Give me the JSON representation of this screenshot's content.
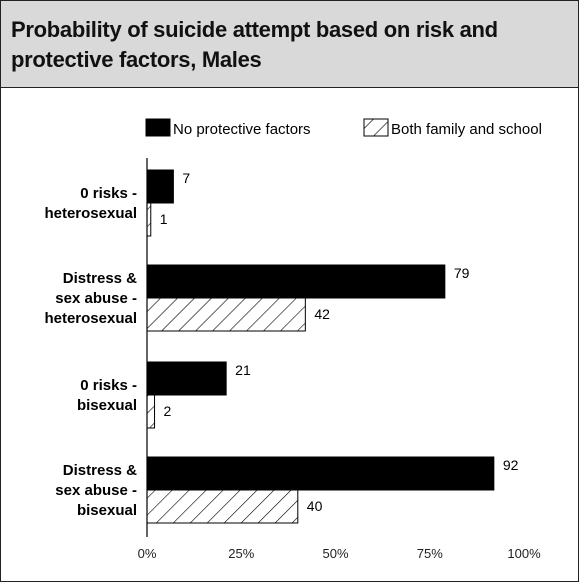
{
  "chart_data": {
    "type": "bar",
    "orientation": "horizontal",
    "title": "Probability of suicide attempt based on risk and protective factors, Males",
    "categories": [
      [
        "0 risks -",
        "heterosexual"
      ],
      [
        "Distress &",
        "sex abuse -",
        "heterosexual"
      ],
      [
        "0 risks -",
        "bisexual"
      ],
      [
        "Distress &",
        "sex abuse -",
        "bisexual"
      ]
    ],
    "series": [
      {
        "name": "No protective factors",
        "values": [
          7,
          79,
          21,
          92
        ],
        "fill": "solid",
        "color": "#000000"
      },
      {
        "name": "Both family and school",
        "values": [
          1,
          42,
          2,
          40
        ],
        "fill": "hatched",
        "color": "#000000"
      }
    ],
    "value_labels": [
      [
        "7",
        "1"
      ],
      [
        "79",
        "42"
      ],
      [
        "21",
        "2"
      ],
      [
        "92",
        "40"
      ]
    ],
    "xlim": [
      0,
      100
    ],
    "x_ticks": [
      "0%",
      "25%",
      "50%",
      "75%",
      "100%"
    ],
    "xlabel": "",
    "ylabel": "",
    "grid": false,
    "legend_position": "top"
  },
  "colors": {
    "header_bg": "#d9d9d9",
    "border": "#222222",
    "bar": "#000000"
  }
}
